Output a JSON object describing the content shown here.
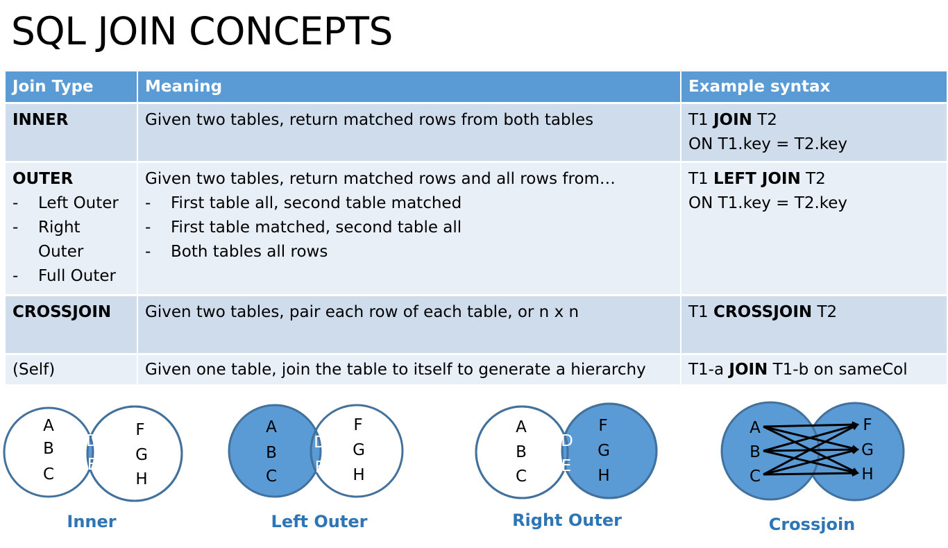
{
  "title": "SQL JOIN CONCEPTS",
  "table": {
    "headers": [
      "Join Type",
      "Meaning",
      "Example syntax"
    ],
    "rows": [
      {
        "type": "INNER",
        "type_items": [],
        "meaning": "Given two tables, return matched rows from both tables",
        "meaning_items": [],
        "syntax": [
          [
            {
              "t": "T1 ",
              "b": false
            },
            {
              "t": "JOIN",
              "b": true
            },
            {
              "t": " T2",
              "b": false
            }
          ],
          [
            {
              "t": "ON T1.key = T2.key",
              "b": false
            }
          ]
        ]
      },
      {
        "type": "OUTER",
        "type_items": [
          "Left Outer",
          "Right Outer",
          "Full Outer"
        ],
        "meaning": "Given two tables, return matched rows and all rows from…",
        "meaning_items": [
          "First table all, second table matched",
          "First table matched, second table all",
          "Both tables all rows"
        ],
        "syntax": [
          [
            {
              "t": "T1 ",
              "b": false
            },
            {
              "t": "LEFT JOIN",
              "b": true
            },
            {
              "t": " T2",
              "b": false
            }
          ],
          [
            {
              "t": "ON T1.key = T2.key",
              "b": false
            }
          ]
        ]
      },
      {
        "type": "CROSSJOIN",
        "type_items": [],
        "meaning": "Given two tables, pair each row of each table, or n x n",
        "meaning_items": [],
        "syntax": [
          [
            {
              "t": "T1 ",
              "b": false
            },
            {
              "t": "CROSSJOIN",
              "b": true
            },
            {
              "t": " T2",
              "b": false
            }
          ]
        ]
      },
      {
        "type": "(Self)",
        "type_items": [],
        "meaning": "Given one table, join the table to itself to generate a hierarchy",
        "meaning_items": [],
        "syntax": [
          [
            {
              "t": "T1-a ",
              "b": false
            },
            {
              "t": "JOIN",
              "b": true
            },
            {
              "t": " T1-b on sameCol",
              "b": false
            }
          ]
        ]
      }
    ]
  },
  "diagrams": {
    "fill_color": "#5b9bd5",
    "stroke_color": "#41719c",
    "label_color": "#2e75b6",
    "left_letters": [
      "A",
      "B",
      "C"
    ],
    "overlap_letters": [
      "D",
      "E"
    ],
    "right_letters": [
      "F",
      "G",
      "H"
    ],
    "items": [
      {
        "label": "Inner"
      },
      {
        "label": "Left Outer"
      },
      {
        "label": "Right Outer"
      },
      {
        "label": "Crossjoin"
      }
    ]
  }
}
